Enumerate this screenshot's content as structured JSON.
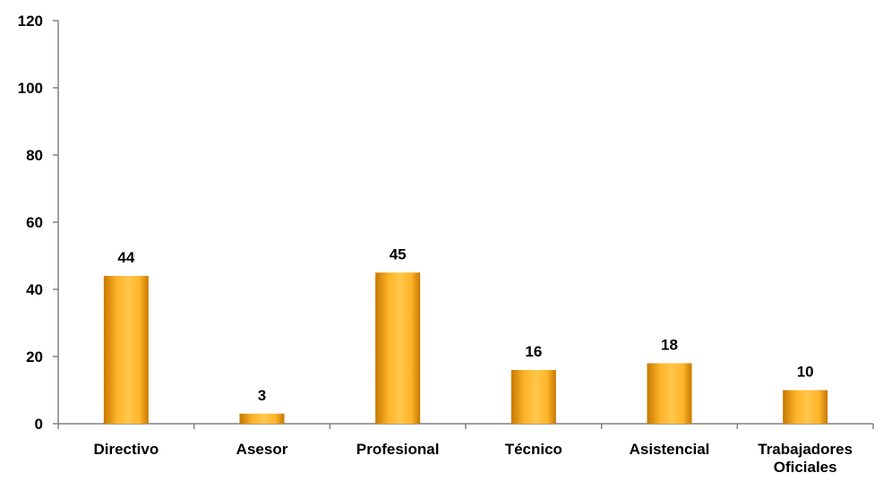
{
  "chart_data": {
    "type": "bar",
    "title": "",
    "xlabel": "",
    "ylabel": "",
    "categories": [
      [
        "Directivo"
      ],
      [
        "Asesor"
      ],
      [
        "Profesional"
      ],
      [
        "Técnico"
      ],
      [
        "Asistencial"
      ],
      [
        "Trabajadores",
        "Oficiales"
      ]
    ],
    "values": [
      44,
      3,
      45,
      16,
      18,
      10
    ],
    "ylim": [
      0,
      120
    ],
    "yticks": [
      0,
      20,
      40,
      60,
      80,
      100,
      120
    ],
    "grid": false,
    "legend": "none",
    "data_labels": true,
    "colors": {
      "bar_edge": "#C87800",
      "bar_mid": "#FFB52A",
      "bar_center": "#FFC64A",
      "axis": "#808080",
      "text": "#000000"
    }
  }
}
